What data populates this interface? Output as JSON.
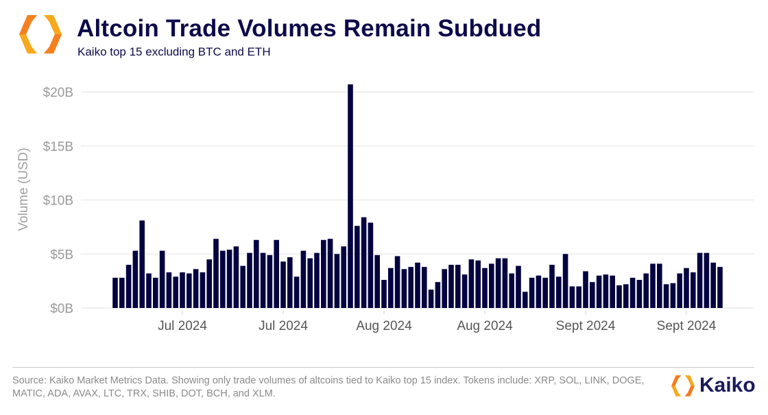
{
  "header": {
    "title": "Altcoin Trade Volumes Remain Subdued",
    "subtitle": "Kaiko top 15 excluding BTC and ETH",
    "logo_colors": [
      "#f7a81b",
      "#f47b20"
    ]
  },
  "footer": {
    "source": "Source: Kaiko Market Metrics Data. Showing only trade volumes of altcoins tied to Kaiko top 15 index. Tokens include: XRP, SOL, LINK, DOGE, MATIC, ADA, AVAX, LTC, TRX, SHIB, DOT, BCH, and XLM.",
    "brand": "Kaiko"
  },
  "chart_data": {
    "type": "bar",
    "title": "Altcoin Trade Volumes Remain Subdued",
    "subtitle": "Kaiko top 15 excluding BTC and ETH",
    "xlabel": "",
    "ylabel": "Volume (USD)",
    "unit": "$B",
    "ylim": [
      0,
      20.8
    ],
    "yticks": [
      0,
      5,
      10,
      15,
      20
    ],
    "ytick_labels": [
      "$0B",
      "$5B",
      "$10B",
      "$15B",
      "$20B"
    ],
    "xtick_labels": [
      "Jul 2024",
      "Jul 2024",
      "Aug 2024",
      "Aug 2024",
      "Sept 2024",
      "Sept 2024"
    ],
    "xtick_bar_index": [
      10,
      25,
      40,
      55,
      70,
      85
    ],
    "grid": "horizontal",
    "bar_color": "#04033f",
    "values": [
      2.8,
      2.8,
      4.0,
      5.3,
      8.1,
      3.2,
      2.8,
      5.3,
      3.3,
      2.9,
      3.3,
      3.2,
      3.6,
      3.3,
      4.5,
      6.4,
      5.3,
      5.4,
      5.7,
      3.9,
      5.1,
      6.3,
      5.1,
      4.9,
      6.3,
      4.3,
      4.7,
      2.9,
      5.3,
      4.6,
      5.1,
      6.3,
      6.4,
      5.0,
      5.7,
      20.7,
      7.6,
      8.4,
      7.9,
      4.9,
      2.6,
      3.7,
      4.8,
      3.6,
      3.8,
      4.2,
      3.8,
      1.7,
      2.4,
      3.6,
      4.0,
      4.0,
      3.1,
      4.5,
      4.4,
      3.7,
      4.1,
      4.6,
      4.6,
      3.2,
      3.9,
      1.5,
      2.8,
      3.0,
      2.8,
      4.0,
      2.9,
      5.0,
      2.0,
      2.0,
      3.4,
      2.4,
      3.0,
      3.1,
      3.0,
      2.1,
      2.2,
      2.8,
      2.6,
      3.2,
      4.1,
      4.1,
      2.2,
      2.3,
      3.2,
      3.7,
      3.3,
      5.1,
      5.1,
      4.2,
      3.8
    ]
  }
}
